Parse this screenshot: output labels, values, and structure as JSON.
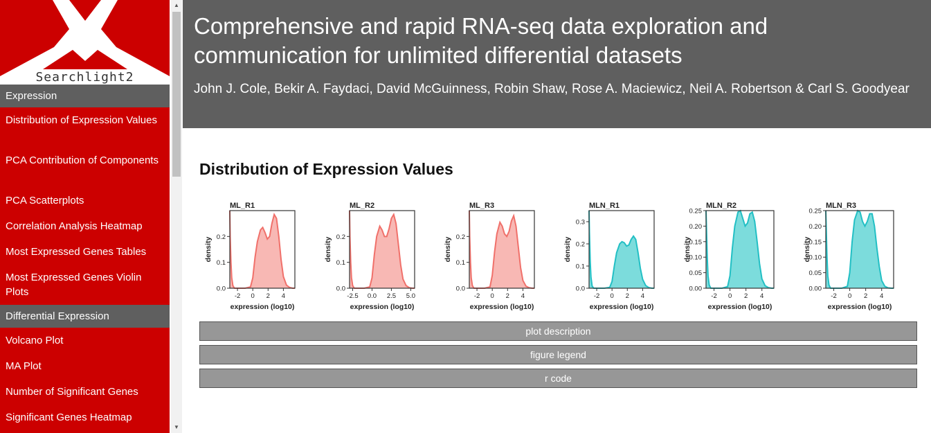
{
  "sidebar": {
    "logo_text": "Searchlight2",
    "items": [
      {
        "type": "section",
        "label": "Expression"
      },
      {
        "type": "item",
        "label": "Distribution of Expression Values",
        "lines": 2
      },
      {
        "type": "item",
        "label": "PCA Contribution of Components",
        "lines": 2
      },
      {
        "type": "item",
        "label": "PCA Scatterplots",
        "lines": 1
      },
      {
        "type": "item",
        "label": "Correlation Analysis Heatmap",
        "lines": 1
      },
      {
        "type": "item",
        "label": "Most Expressed Genes Tables",
        "lines": 1
      },
      {
        "type": "item",
        "label": "Most Expressed Genes Violin Plots",
        "lines": 2
      },
      {
        "type": "section",
        "label": "Differential Expression"
      },
      {
        "type": "item",
        "label": "Volcano Plot",
        "lines": 1
      },
      {
        "type": "item",
        "label": "MA Plot",
        "lines": 1
      },
      {
        "type": "item",
        "label": "Number of Significant Genes",
        "lines": 1
      },
      {
        "type": "item",
        "label": "Significant Genes Heatmap",
        "lines": 1
      }
    ]
  },
  "header": {
    "title": "Comprehensive and rapid RNA-seq data exploration and communication for unlimited differential datasets",
    "authors": "John J. Cole, Bekir A. Faydaci, David McGuinness, Robin Shaw, Rose A. Maciewicz, Neil A. Robertson & Carl S. Goodyear"
  },
  "main": {
    "section_title": "Distribution of Expression Values",
    "collapsibles": [
      {
        "label": "plot description"
      },
      {
        "label": "figure legend"
      },
      {
        "label": "r code"
      }
    ]
  },
  "colors": {
    "sidebar": "#cc0000",
    "section": "#5f5f5f",
    "header": "#5f5f5f",
    "ml_fill": "#f8b8b4",
    "ml_line": "#f0706a",
    "mln_fill": "#7cdcdc",
    "mln_line": "#22bfc4",
    "button": "#979797"
  },
  "chart_data": [
    {
      "type": "area",
      "title": "ML_R1",
      "xlabel": "expression (log10)",
      "ylabel": "density",
      "xlim": [
        -3,
        5.5
      ],
      "ylim": [
        0,
        0.3
      ],
      "xticks": [
        -2,
        0,
        2,
        4
      ],
      "yticks": [
        0.0,
        0.1,
        0.2
      ],
      "ytick_labels": [
        "0.0",
        "0.1",
        "0.2"
      ],
      "group": "ML",
      "x": [
        -3,
        -2.95,
        -2.85,
        -2.75,
        -2.6,
        -2.4,
        -2,
        -1,
        -0.3,
        0,
        0.3,
        0.6,
        1,
        1.3,
        1.6,
        1.9,
        2.2,
        2.5,
        2.8,
        3.1,
        3.4,
        3.7,
        4,
        4.4,
        4.8,
        5.2,
        5.5
      ],
      "y": [
        0.3,
        0.2,
        0.1,
        0.04,
        0.01,
        0.0,
        0.0,
        0.0,
        0.005,
        0.04,
        0.12,
        0.18,
        0.225,
        0.235,
        0.215,
        0.19,
        0.2,
        0.25,
        0.285,
        0.27,
        0.2,
        0.11,
        0.045,
        0.012,
        0.003,
        0.0,
        0.0
      ]
    },
    {
      "type": "area",
      "title": "ML_R2",
      "xlabel": "expression (log10)",
      "ylabel": "density",
      "xlim": [
        -2.9,
        5.5
      ],
      "ylim": [
        0,
        0.3
      ],
      "xticks": [
        -2.5,
        0,
        2.5,
        5
      ],
      "yticks": [
        0.0,
        0.1,
        0.2
      ],
      "xtick_labels": [
        "-2.5",
        "0.0",
        "2.5",
        "5.0"
      ],
      "ytick_labels": [
        "0.0",
        "0.1",
        "0.2"
      ],
      "group": "ML",
      "x": [
        -2.9,
        -2.85,
        -2.75,
        -2.65,
        -2.5,
        -2.3,
        -2,
        -1,
        -0.3,
        0,
        0.3,
        0.6,
        1,
        1.3,
        1.6,
        1.9,
        2.2,
        2.5,
        2.8,
        3.1,
        3.4,
        3.7,
        4,
        4.4,
        4.8,
        5.2,
        5.5
      ],
      "y": [
        0.3,
        0.2,
        0.1,
        0.04,
        0.01,
        0.0,
        0.0,
        0.0,
        0.005,
        0.04,
        0.13,
        0.2,
        0.24,
        0.225,
        0.2,
        0.2,
        0.23,
        0.27,
        0.285,
        0.25,
        0.17,
        0.09,
        0.035,
        0.01,
        0.002,
        0.0,
        0.0
      ]
    },
    {
      "type": "area",
      "title": "ML_R3",
      "xlabel": "expression (log10)",
      "ylabel": "density",
      "xlim": [
        -3,
        5.5
      ],
      "ylim": [
        0,
        0.3
      ],
      "xticks": [
        -2,
        0,
        2,
        4
      ],
      "yticks": [
        0.0,
        0.1,
        0.2
      ],
      "ytick_labels": [
        "0.0",
        "0.1",
        "0.2"
      ],
      "group": "ML",
      "x": [
        -3,
        -2.95,
        -2.85,
        -2.75,
        -2.6,
        -2.4,
        -2,
        -1,
        -0.3,
        0,
        0.3,
        0.6,
        1,
        1.3,
        1.6,
        1.9,
        2.2,
        2.5,
        2.8,
        3.1,
        3.4,
        3.7,
        4,
        4.4,
        4.8,
        5.2,
        5.5
      ],
      "y": [
        0.3,
        0.2,
        0.1,
        0.04,
        0.01,
        0.0,
        0.0,
        0.0,
        0.005,
        0.05,
        0.14,
        0.21,
        0.255,
        0.24,
        0.21,
        0.2,
        0.22,
        0.26,
        0.28,
        0.24,
        0.16,
        0.08,
        0.03,
        0.008,
        0.002,
        0.0,
        0.0
      ]
    },
    {
      "type": "area",
      "title": "MLN_R1",
      "xlabel": "expression (log10)",
      "ylabel": "density",
      "xlim": [
        -3,
        5.5
      ],
      "ylim": [
        0,
        0.35
      ],
      "xticks": [
        -2,
        0,
        2,
        4
      ],
      "yticks": [
        0.0,
        0.1,
        0.2,
        0.3
      ],
      "ytick_labels": [
        "0.0",
        "0.1",
        "0.2",
        "0.3"
      ],
      "group": "MLN",
      "x": [
        -3,
        -2.95,
        -2.85,
        -2.75,
        -2.6,
        -2.4,
        -2,
        -1,
        -0.3,
        0,
        0.3,
        0.6,
        1,
        1.3,
        1.6,
        1.9,
        2.2,
        2.5,
        2.8,
        3.1,
        3.4,
        3.7,
        4,
        4.4,
        4.8,
        5.2,
        5.5
      ],
      "y": [
        0.35,
        0.25,
        0.12,
        0.05,
        0.01,
        0.0,
        0.0,
        0.0,
        0.004,
        0.03,
        0.1,
        0.16,
        0.2,
        0.21,
        0.205,
        0.19,
        0.195,
        0.22,
        0.235,
        0.22,
        0.16,
        0.09,
        0.04,
        0.012,
        0.003,
        0.0,
        0.0
      ]
    },
    {
      "type": "area",
      "title": "MLN_R2",
      "xlabel": "expression (log10)",
      "ylabel": "density",
      "xlim": [
        -3,
        5.5
      ],
      "ylim": [
        0,
        0.25
      ],
      "xticks": [
        -2,
        0,
        2,
        4
      ],
      "yticks": [
        0.0,
        0.05,
        0.1,
        0.15,
        0.2,
        0.25
      ],
      "ytick_labels": [
        "0.00",
        "0.05",
        "0.10",
        "0.15",
        "0.20",
        "0.25"
      ],
      "group": "MLN",
      "x": [
        -3,
        -2.95,
        -2.85,
        -2.75,
        -2.6,
        -2.4,
        -2,
        -1,
        -0.3,
        0,
        0.3,
        0.6,
        1,
        1.3,
        1.6,
        1.9,
        2.2,
        2.5,
        2.8,
        3.1,
        3.4,
        3.7,
        4,
        4.4,
        4.8,
        5.2,
        5.5
      ],
      "y": [
        0.25,
        0.2,
        0.1,
        0.04,
        0.01,
        0.0,
        0.0,
        0.0,
        0.005,
        0.04,
        0.13,
        0.2,
        0.245,
        0.25,
        0.225,
        0.2,
        0.21,
        0.24,
        0.245,
        0.215,
        0.15,
        0.08,
        0.03,
        0.008,
        0.002,
        0.0,
        0.0
      ]
    },
    {
      "type": "area",
      "title": "MLN_R3",
      "xlabel": "expression (log10)",
      "ylabel": "density",
      "xlim": [
        -3,
        5.5
      ],
      "ylim": [
        0,
        0.25
      ],
      "xticks": [
        -2,
        0,
        2,
        4
      ],
      "yticks": [
        0.0,
        0.05,
        0.1,
        0.15,
        0.2,
        0.25
      ],
      "ytick_labels": [
        "0.00",
        "0.05",
        "0.10",
        "0.15",
        "0.20",
        "0.25"
      ],
      "group": "MLN",
      "x": [
        -3,
        -2.95,
        -2.85,
        -2.75,
        -2.6,
        -2.4,
        -2,
        -1,
        -0.3,
        0,
        0.3,
        0.6,
        1,
        1.3,
        1.6,
        1.9,
        2.2,
        2.5,
        2.8,
        3.1,
        3.4,
        3.7,
        4,
        4.4,
        4.8,
        5.2,
        5.5
      ],
      "y": [
        0.25,
        0.2,
        0.1,
        0.04,
        0.01,
        0.0,
        0.0,
        0.0,
        0.006,
        0.05,
        0.15,
        0.22,
        0.25,
        0.245,
        0.215,
        0.2,
        0.215,
        0.24,
        0.24,
        0.2,
        0.13,
        0.07,
        0.025,
        0.006,
        0.001,
        0.0,
        0.0
      ]
    }
  ]
}
